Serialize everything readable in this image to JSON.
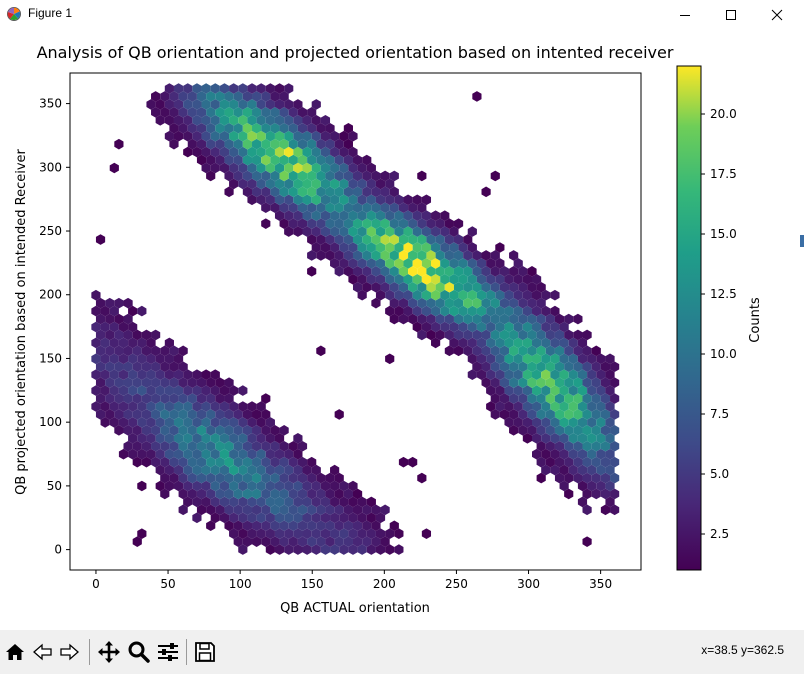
{
  "window": {
    "title": "Figure 1",
    "controls": [
      "minimize",
      "maximize",
      "close"
    ]
  },
  "figure": {
    "title": "Analysis of QB orientation and projected orientation based on intented receiver",
    "xlabel": "QB ACTUAL orientation",
    "ylabel": "QB projected orientation based on intended Receiver",
    "colorbar_label": "Counts",
    "colormap": "viridis"
  },
  "chart_data": {
    "type": "scatter",
    "subtype": "hexbin",
    "title": "Analysis of QB orientation and projected orientation based on intented receiver",
    "xlabel": "QB ACTUAL orientation",
    "ylabel": "QB projected orientation based on intended Receiver",
    "xlim": [
      -18,
      378
    ],
    "ylim": [
      -16,
      374
    ],
    "xticks": [
      0,
      50,
      100,
      150,
      200,
      250,
      300,
      350
    ],
    "yticks": [
      0,
      50,
      100,
      150,
      200,
      250,
      300,
      350
    ],
    "colorbar": {
      "label": "Counts",
      "range": [
        1,
        22
      ],
      "ticks": [
        2.5,
        5.0,
        7.5,
        10.0,
        12.5,
        15.0,
        17.5,
        20.0
      ],
      "tick_labels": [
        "2.5",
        "5.0",
        "7.5",
        "10.0",
        "12.5",
        "15.0",
        "17.5",
        "20.0"
      ]
    },
    "grid": false,
    "clusters": [
      {
        "name": "upper-left band",
        "x_range": [
          65,
          200
        ],
        "y_range": [
          245,
          360
        ],
        "peak": [
          140,
          320
        ],
        "peak_count": 20
      },
      {
        "name": "middle band",
        "x_range": [
          180,
          300
        ],
        "y_range": [
          160,
          270
        ],
        "peak": [
          230,
          228
        ],
        "peak_count": 22
      },
      {
        "name": "lower-right band",
        "x_range": [
          270,
          362
        ],
        "y_range": [
          60,
          200
        ],
        "peak": [
          325,
          140
        ],
        "peak_count": 18
      },
      {
        "name": "lower-left band",
        "x_range": [
          0,
          175
        ],
        "y_range": [
          0,
          165
        ],
        "peak": [
          60,
          45
        ],
        "peak_count": 16
      }
    ]
  },
  "toolbar": {
    "tools": [
      "home",
      "back",
      "forward",
      "pan",
      "zoom",
      "configure-subplots",
      "save"
    ]
  },
  "status": {
    "coordinates": "x=38.5 y=362.5"
  }
}
